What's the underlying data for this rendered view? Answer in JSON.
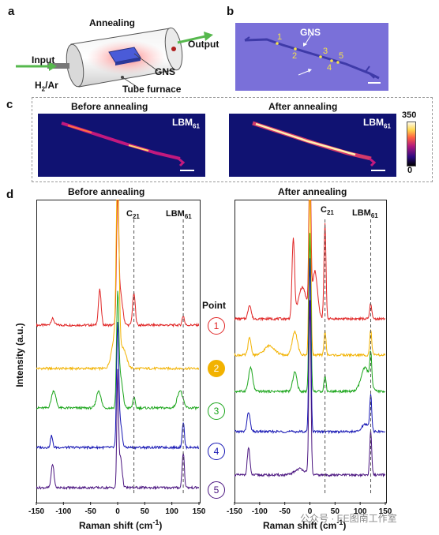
{
  "panels": {
    "a": "a",
    "b": "b",
    "c": "c",
    "d": "d"
  },
  "panel_a": {
    "annealing": "Annealing",
    "input": "Input",
    "output": "Output",
    "gas": "H",
    "gas_sub": "2",
    "gas_rest": "/Ar",
    "gns": "GNS",
    "tube_furnace": "Tube furnace"
  },
  "panel_b": {
    "label": "GNS",
    "points": [
      "1",
      "2",
      "3",
      "4",
      "5"
    ]
  },
  "panel_c": {
    "before": "Before annealing",
    "after": "After annealing",
    "lbm": "LBM",
    "lbm_sub": "61",
    "scale_max": "350",
    "scale_min": "0"
  },
  "panel_d": {
    "before": "Before annealing",
    "after": "After annealing",
    "c21": "C",
    "c21_sub": "21",
    "lbm": "LBM",
    "lbm_sub": "61",
    "point_header": "Point",
    "ylabel": "Intensity (a.u.)",
    "xlabel": "Raman shift (cm",
    "xlabel_sup": "-1",
    "xlabel_end": ")",
    "watermark": "公众号 · EE图南工作室"
  },
  "chart_data": [
    {
      "type": "line",
      "title": "Before annealing",
      "xlabel": "Raman shift (cm-1)",
      "ylabel": "Intensity (a.u.)",
      "xlim": [
        -150,
        150
      ],
      "xticks": [
        -150,
        -100,
        -50,
        0,
        50,
        100,
        150
      ],
      "xtick_labels": [
        "-150",
        "-100",
        "-50",
        "0",
        "50",
        "100",
        "150"
      ],
      "reference_lines": [
        {
          "x": 30,
          "label": "C21"
        },
        {
          "x": 121,
          "label": "LBM61"
        }
      ],
      "series": [
        {
          "name": "1",
          "color": "#e02525"
        },
        {
          "name": "2",
          "color": "#f2b200"
        },
        {
          "name": "3",
          "color": "#1aa51a"
        },
        {
          "name": "4",
          "color": "#1616b4"
        },
        {
          "name": "5",
          "color": "#4b1580"
        }
      ]
    },
    {
      "type": "line",
      "title": "After annealing",
      "xlabel": "Raman shift (cm-1)",
      "ylabel": "Intensity (a.u.)",
      "xlim": [
        -150,
        150
      ],
      "xticks": [
        -150,
        -100,
        -50,
        0,
        50,
        100,
        150
      ],
      "xtick_labels": [
        "-150",
        "-100",
        "-50",
        "0",
        "50",
        "100",
        "150"
      ],
      "reference_lines": [
        {
          "x": 30,
          "label": "C21"
        },
        {
          "x": 121,
          "label": "LBM61"
        }
      ],
      "series": [
        {
          "name": "1",
          "color": "#e02525"
        },
        {
          "name": "2",
          "color": "#f2b200"
        },
        {
          "name": "3",
          "color": "#1aa51a"
        },
        {
          "name": "4",
          "color": "#1616b4"
        },
        {
          "name": "5",
          "color": "#4b1580"
        }
      ]
    }
  ]
}
